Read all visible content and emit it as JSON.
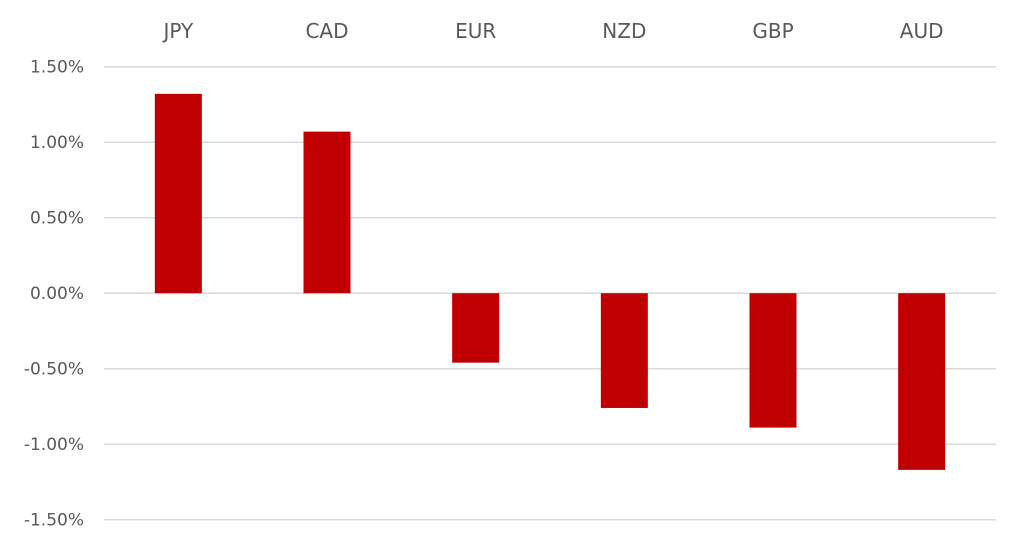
{
  "chart_data": {
    "type": "bar",
    "title": "",
    "xlabel": "",
    "ylabel": "",
    "categories": [
      "JPY",
      "CAD",
      "EUR",
      "NZD",
      "GBP",
      "AUD"
    ],
    "values": [
      1.32,
      1.07,
      -0.46,
      -0.76,
      -0.89,
      -1.17
    ],
    "unit": "%",
    "ylim": [
      -1.5,
      1.5
    ],
    "yticks": [
      1.5,
      1.0,
      0.5,
      0.0,
      -0.5,
      -1.0,
      -1.5
    ],
    "ytick_labels": [
      "1.50%",
      "1.00%",
      "0.50%",
      "0.00%",
      "-0.50%",
      "-1.00%",
      "-1.50%"
    ],
    "category_labels_position": "top",
    "grid": true,
    "legend": "none",
    "bar_color": "#C00000",
    "grid_color": "#D9D9D9"
  }
}
